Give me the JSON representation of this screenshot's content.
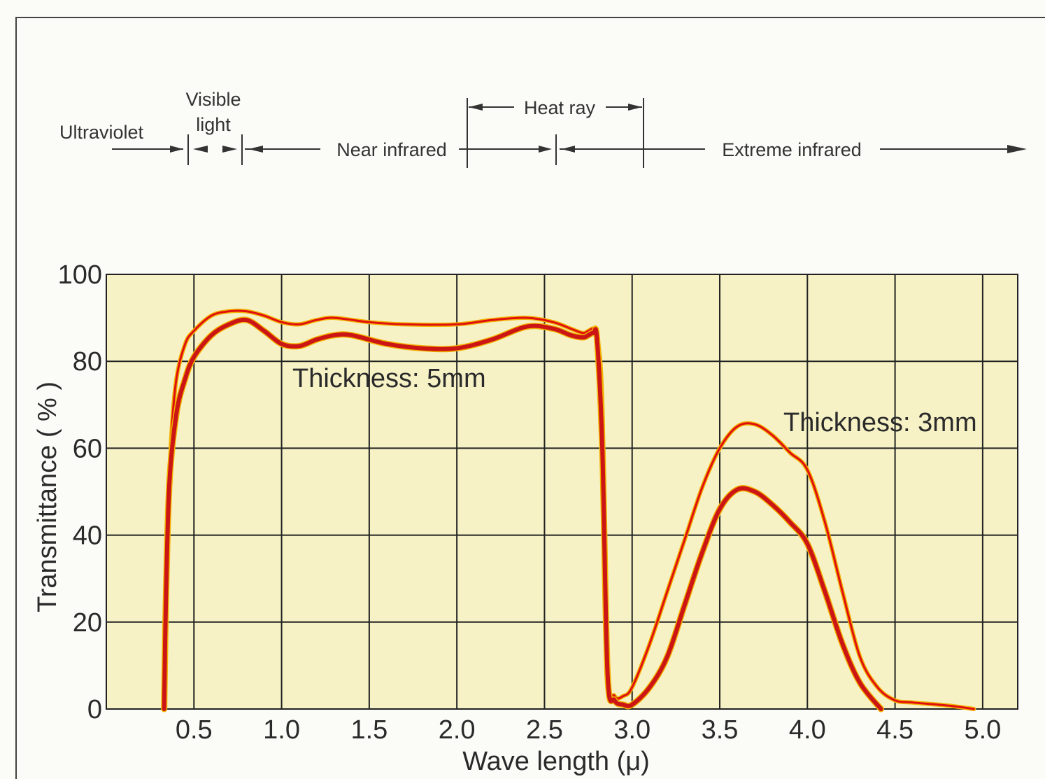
{
  "spectrum_bands": {
    "ultraviolet": "Ultraviolet",
    "visible_line1": "Visible",
    "visible_line2": "light",
    "near_infrared": "Near infrared",
    "heat_ray": "Heat ray",
    "extreme_infrared": "Extreme infrared"
  },
  "chart_data": {
    "type": "line",
    "xlabel": "Wave length (μ)",
    "ylabel": "Transmittance ( % )",
    "xlim": [
      0,
      5.2
    ],
    "ylim": [
      0,
      100
    ],
    "x_ticks": [
      "0.5",
      "1.0",
      "1.5",
      "2.0",
      "2.5",
      "3.0",
      "3.5",
      "4.0",
      "4.5",
      "5.0"
    ],
    "x_tick_values": [
      0.5,
      1.0,
      1.5,
      2.0,
      2.5,
      3.0,
      3.5,
      4.0,
      4.5,
      5.0
    ],
    "y_ticks": [
      "0",
      "20",
      "40",
      "60",
      "80",
      "100"
    ],
    "y_tick_values": [
      0,
      20,
      40,
      60,
      80,
      100
    ],
    "grid": true,
    "plot_background": "#f6f2c6",
    "annotations": [
      "Thickness: 5mm",
      "Thickness: 3mm"
    ],
    "series": [
      {
        "label": "Thickness: 3mm",
        "color": "#e01010",
        "x": [
          0.33,
          0.345,
          0.37,
          0.4,
          0.45,
          0.5,
          0.6,
          0.7,
          0.8,
          0.9,
          1.0,
          1.1,
          1.2,
          1.3,
          1.5,
          1.7,
          2.0,
          2.2,
          2.4,
          2.55,
          2.65,
          2.72,
          2.75,
          2.78,
          2.8,
          2.83,
          2.86,
          2.9,
          2.95,
          3.0,
          3.1,
          3.2,
          3.3,
          3.4,
          3.5,
          3.6,
          3.7,
          3.8,
          3.9,
          4.0,
          4.1,
          4.2,
          4.3,
          4.4,
          4.5,
          4.6,
          4.8,
          4.95
        ],
        "y": [
          0,
          35,
          62,
          76,
          84,
          87,
          90.5,
          91.5,
          91.5,
          90.5,
          89,
          88.5,
          89.5,
          90,
          89,
          88.5,
          88.5,
          89.5,
          90,
          89,
          87.5,
          86.5,
          87,
          87.5,
          86,
          70,
          10,
          3,
          3,
          5,
          15,
          27,
          39,
          51,
          60,
          65,
          65.5,
          63,
          59,
          55,
          43,
          27,
          12,
          5,
          2,
          1.5,
          0.8,
          0
        ]
      },
      {
        "label": "Thickness: 5mm",
        "color": "#cc1515",
        "x": [
          0.33,
          0.34,
          0.36,
          0.4,
          0.45,
          0.5,
          0.6,
          0.7,
          0.8,
          0.9,
          1.0,
          1.1,
          1.2,
          1.3,
          1.4,
          1.6,
          1.8,
          2.0,
          2.2,
          2.4,
          2.55,
          2.65,
          2.72,
          2.75,
          2.78,
          2.8,
          2.83,
          2.86,
          2.9,
          2.95,
          3.0,
          3.1,
          3.2,
          3.3,
          3.4,
          3.5,
          3.6,
          3.7,
          3.8,
          3.9,
          4.0,
          4.1,
          4.2,
          4.3,
          4.42
        ],
        "y": [
          0,
          25,
          52,
          68,
          76,
          81,
          86,
          88.5,
          89.5,
          87,
          84,
          83.5,
          85,
          86,
          86,
          84,
          83,
          83,
          85,
          88,
          87.5,
          86,
          85.5,
          86,
          86.5,
          85,
          60,
          8,
          2,
          1,
          1,
          5,
          12,
          24,
          36,
          46,
          50.5,
          50,
          47,
          43,
          38,
          27,
          15,
          6,
          0
        ]
      }
    ]
  }
}
